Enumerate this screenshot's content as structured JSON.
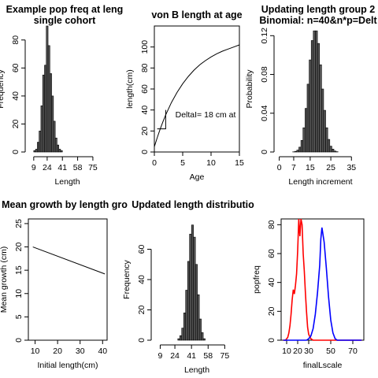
{
  "chart_data": [
    {
      "id": "p1",
      "type": "bar",
      "title": [
        "Example pop freq at leng",
        "single cohort"
      ],
      "xlabel": "Length",
      "ylabel": "Frequency",
      "xlim": [
        3,
        90
      ],
      "ylim": [
        0,
        90
      ],
      "xticks": [
        9,
        24,
        41,
        58,
        75
      ],
      "yticks": [
        0,
        20,
        40,
        60,
        80
      ],
      "bin_width": 2,
      "x": [
        10,
        12,
        14,
        16,
        18,
        20,
        22,
        24,
        26,
        28,
        30,
        32,
        34,
        36,
        38,
        40,
        42,
        44,
        46,
        48,
        50,
        52,
        54,
        56,
        58,
        60,
        62,
        64,
        66,
        68,
        70,
        72,
        74,
        76,
        78,
        80,
        82,
        84,
        86,
        88
      ],
      "values": [
        1,
        2,
        7,
        15,
        33,
        55,
        62,
        90,
        76,
        56,
        40,
        22,
        10,
        5,
        2,
        1,
        0,
        0,
        0,
        0,
        0,
        0,
        0,
        0,
        0,
        0,
        0,
        0,
        0,
        0,
        0,
        0,
        0,
        0,
        0,
        0,
        0,
        0,
        0,
        0
      ]
    },
    {
      "id": "p2",
      "type": "line",
      "title": [
        "von B length at age"
      ],
      "xlabel": "Age",
      "ylabel": "length(cm)",
      "xlim": [
        0,
        15
      ],
      "ylim": [
        0,
        120
      ],
      "xticks": [
        0,
        5,
        10,
        15
      ],
      "yticks": [
        0,
        20,
        40,
        60,
        80,
        100
      ],
      "x": [
        0,
        0.5,
        1,
        1.5,
        2,
        3,
        4,
        5,
        6,
        7,
        8,
        9,
        10,
        11,
        12,
        13,
        14,
        15
      ],
      "values": [
        5,
        13.5,
        21.4,
        28.6,
        35.3,
        47,
        56.7,
        65,
        72,
        78,
        83,
        87,
        90.5,
        93.5,
        96,
        98,
        100,
        102
      ],
      "annotation": "DeltaI= 18 cm at"
    },
    {
      "id": "p3",
      "type": "bar",
      "title": [
        "Updating length group 2",
        "Binomial: n=40&n*p=Delt"
      ],
      "xlabel": "Length increment",
      "ylabel": "Probability",
      "xlim": [
        -1,
        41
      ],
      "ylim": [
        0,
        0.13
      ],
      "xticks": [
        0,
        7,
        15,
        25,
        35
      ],
      "yticks": [
        0,
        0.04,
        0.08,
        0.12
      ],
      "bin_width": 1,
      "x": [
        0,
        1,
        2,
        3,
        4,
        5,
        6,
        7,
        8,
        9,
        10,
        11,
        12,
        13,
        14,
        15,
        16,
        17,
        18,
        19,
        20,
        21,
        22,
        23,
        24,
        25,
        26,
        27,
        28,
        29,
        30,
        31,
        32,
        33,
        34,
        35,
        36,
        37,
        38,
        39,
        40
      ],
      "values": [
        0,
        0,
        0,
        0,
        0,
        0,
        0,
        0.0002,
        0.0007,
        0.002,
        0.005,
        0.012,
        0.025,
        0.045,
        0.07,
        0.095,
        0.115,
        0.125,
        0.125,
        0.112,
        0.09,
        0.065,
        0.043,
        0.025,
        0.013,
        0.006,
        0.003,
        0.001,
        0.0003,
        0,
        0,
        0,
        0,
        0,
        0,
        0,
        0,
        0,
        0,
        0,
        0
      ]
    },
    {
      "id": "p4",
      "type": "line",
      "title": [
        "Mean growth by length gro"
      ],
      "xlabel": "Initial length(cm)",
      "ylabel": "Mean growth (cm)",
      "xlim": [
        7,
        42
      ],
      "ylim": [
        0,
        26
      ],
      "xticks": [
        10,
        20,
        30,
        40
      ],
      "yticks": [
        0,
        5,
        10,
        15,
        20,
        25
      ],
      "x": [
        9,
        41
      ],
      "values": [
        20,
        14.2
      ]
    },
    {
      "id": "p5",
      "type": "bar",
      "title": [
        "Updated length distributio"
      ],
      "xlabel": "Length",
      "ylabel": "Frequency",
      "xlim": [
        3,
        90
      ],
      "ylim": [
        0,
        80
      ],
      "xticks": [
        9,
        24,
        41,
        58,
        75
      ],
      "yticks": [
        0,
        20,
        40,
        60
      ],
      "bin_width": 2,
      "x": [
        10,
        12,
        14,
        16,
        18,
        20,
        22,
        24,
        26,
        28,
        30,
        32,
        34,
        36,
        38,
        40,
        42,
        44,
        46,
        48,
        50,
        52,
        54,
        56,
        58,
        60,
        62,
        64,
        66,
        68,
        70,
        72,
        74,
        76,
        78,
        80,
        82,
        84,
        86,
        88
      ],
      "values": [
        0,
        0,
        0,
        0,
        0,
        0,
        0,
        0,
        0,
        1,
        3,
        8,
        18,
        33,
        52,
        70,
        76,
        68,
        50,
        30,
        14,
        5,
        1,
        0,
        0,
        0,
        0,
        0,
        0,
        0,
        0,
        0,
        0,
        0,
        0,
        0,
        0,
        0,
        0,
        0
      ]
    },
    {
      "id": "p6",
      "type": "line",
      "title": [
        ""
      ],
      "xlabel": "finalLscale",
      "ylabel": "popfreq",
      "xlim": [
        5,
        80
      ],
      "ylim": [
        0,
        84
      ],
      "xticks": [
        10,
        20,
        30,
        50,
        70
      ],
      "yticks": [
        0,
        20,
        40,
        60,
        80
      ],
      "series": [
        {
          "color": "#ff0000",
          "x": [
            7,
            9,
            11,
            12,
            13,
            14,
            15,
            16,
            17,
            18,
            19,
            20,
            21,
            22,
            23,
            24,
            25,
            26,
            27,
            28,
            29,
            30,
            32,
            34,
            36,
            40,
            50,
            60,
            70,
            78
          ],
          "values": [
            0,
            0,
            2,
            5,
            10,
            18,
            28,
            35,
            32,
            38,
            46,
            62,
            84,
            72,
            84,
            80,
            60,
            48,
            33,
            20,
            9,
            4,
            1,
            0,
            0,
            0,
            0,
            0,
            0,
            0
          ]
        },
        {
          "color": "#0000ff",
          "x": [
            7,
            20,
            25,
            28,
            30,
            32,
            34,
            36,
            38,
            40,
            41,
            42,
            44,
            46,
            48,
            50,
            52,
            54,
            56,
            60,
            65,
            70,
            78
          ],
          "values": [
            0,
            0,
            0,
            0,
            1,
            3,
            8,
            18,
            33,
            52,
            70,
            78,
            68,
            50,
            30,
            14,
            5,
            1,
            0,
            0,
            0,
            0,
            0
          ]
        }
      ]
    }
  ]
}
